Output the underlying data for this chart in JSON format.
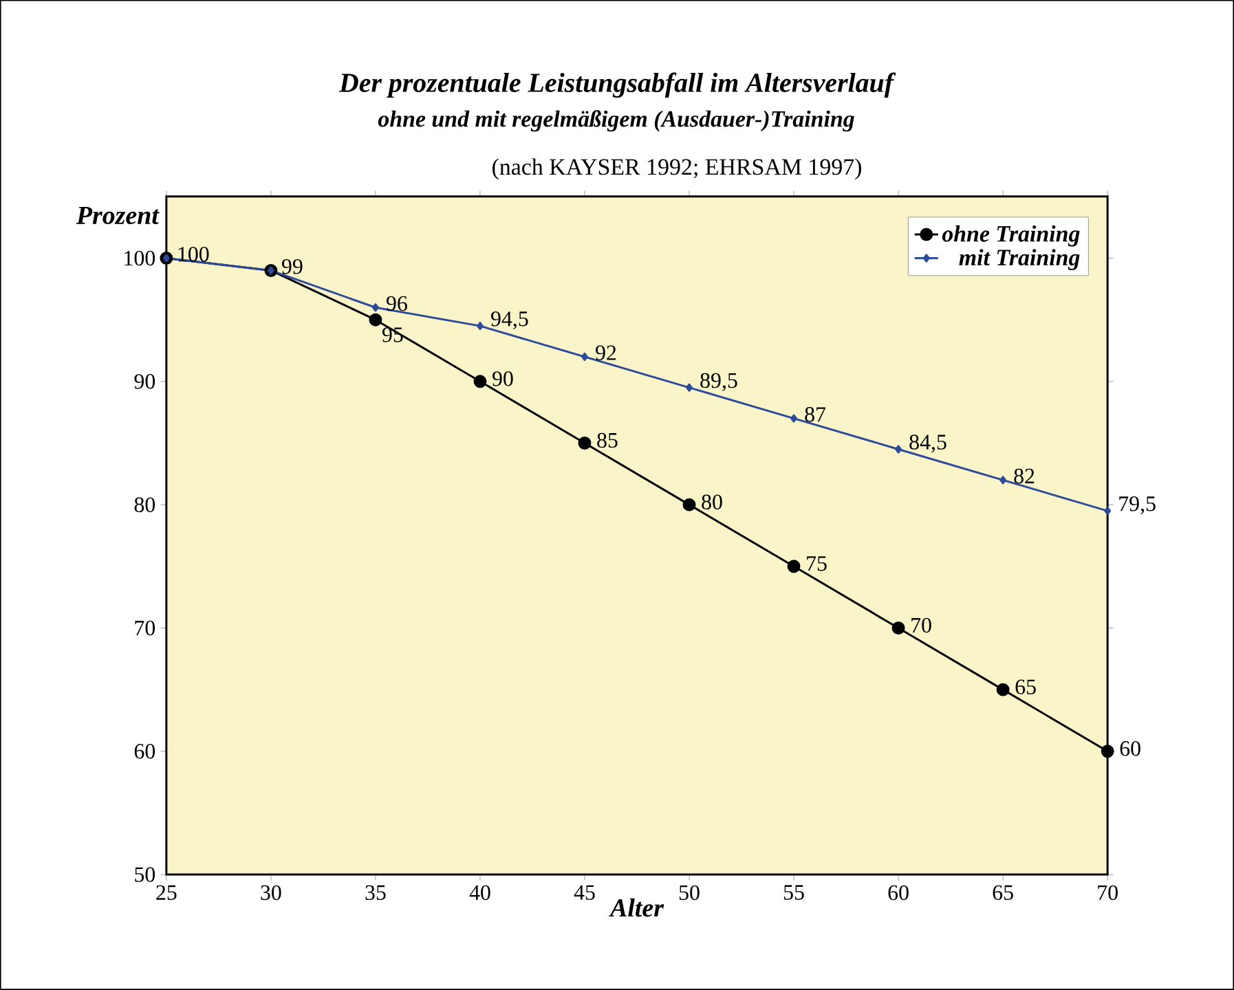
{
  "chart_data": {
    "type": "line",
    "title": "Der prozentuale Leistungsabfall im Altersverlauf",
    "subtitle": "ohne und mit regelmäßigem (Ausdauer-)Training",
    "annotations": [
      "(nach KAYSER 1992; EHRSAM 1997)"
    ],
    "xlabel": "Alter",
    "ylabel": "Prozent",
    "x": [
      25,
      30,
      35,
      40,
      45,
      50,
      55,
      60,
      65,
      70
    ],
    "series": [
      {
        "name": "ohne Training",
        "color": "#000000",
        "marker": "circle",
        "values": [
          100,
          99,
          95,
          90,
          85,
          80,
          75,
          70,
          65,
          60
        ],
        "value_labels": [
          null,
          null,
          "95",
          "90",
          "85",
          "80",
          "75",
          "70",
          "65",
          "60"
        ]
      },
      {
        "name": "mit Training",
        "color": "#2e4b9b",
        "marker": "diamond",
        "values": [
          100,
          99,
          96,
          94.5,
          92,
          89.5,
          87,
          84.5,
          82,
          79.5
        ],
        "value_labels": [
          "100",
          "99",
          "96",
          "94,5",
          "92",
          "89,5",
          "87",
          "84,5",
          "82",
          "79,5"
        ]
      }
    ],
    "xlim": [
      25,
      70
    ],
    "xticks": [
      25,
      30,
      35,
      40,
      45,
      50,
      55,
      60,
      65,
      70
    ],
    "ylim": [
      50,
      105
    ],
    "yticks": [
      50,
      60,
      70,
      80,
      90,
      100
    ],
    "grid": false,
    "legend": "top right",
    "line_style": "solid"
  }
}
